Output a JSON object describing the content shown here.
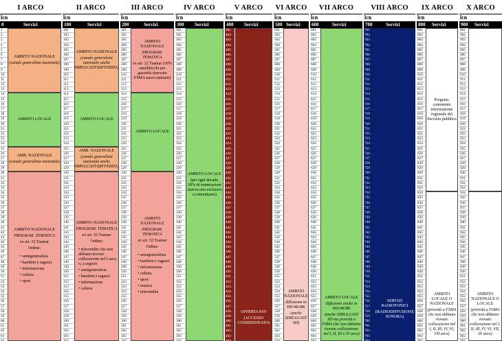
{
  "header": {
    "lcn": "lcn",
    "servizi": "Servizi"
  },
  "arcs": [
    {
      "title": "I ARCO",
      "start": "0"
    },
    {
      "title": "II ARCO",
      "start": "100"
    },
    {
      "title": "III ARCO",
      "start": "200"
    },
    {
      "title": "IV ARCO",
      "start": "300"
    },
    {
      "title": "V ARCO",
      "start": "400"
    },
    {
      "title": "VI ARCO",
      "start": "500"
    },
    {
      "title": "VII ARCO",
      "start": "600"
    },
    {
      "title": "VIII ARCO",
      "start": "700"
    },
    {
      "title": "IX ARCO",
      "start": "800"
    },
    {
      "title": "X ARCO",
      "start": "900"
    }
  ],
  "blocks": {
    "a1_top_1": "AMBITO NAZIONALE",
    "a1_top_2": "(canale generalista nazionale)",
    "a1_mid": "AMBITO LOCALE",
    "a1_20_1": "AMB. NAZIONALE",
    "a1_20_2": "(canale generalista nazionale)",
    "a1_bot_1": "AMBITO NAZIONALE",
    "a1_bot_2": "PROGRAM. TEMATICA",
    "a1_bot_3": "ex art. 32 Tusmar",
    "a1_bot_4": "Ordine:",
    "a1_list": [
      "semigeneralista",
      "bambini e ragazzi",
      "informazione",
      "cultura",
      "sport"
    ],
    "a2_top_1": "AMBITO NAZIONALE",
    "a2_top_2": "(canale generalista nazionale anche SIMULCAST/DIFFERITA)",
    "a2_mid": "AMBITO LOCALE",
    "a2_20_1": "AMB. NAZIONALE",
    "a2_20_2": "(canale generalista nazionale anche SIMULCAST/DIFFERITA)",
    "a2_bot_1": "AMBITO NAZIONALE",
    "a2_bot_2": "PROGRAM. TEMATICA",
    "a2_bot_3": "ex art. 32 Tusmar",
    "a2_bot_4": "Ordine:",
    "a2_list": [
      "televendite che non abbiano trovato collocazione nel I arco, o, a seguire",
      "semigeneralista",
      "bambini e ragazzi",
      "informazione",
      "cultura"
    ],
    "a3_top_1": "AMBITO NAZIONALE",
    "a3_top_2": "PROGRAM. TEMATICA",
    "a3_top_3": "ex art. 32 Tusmar (30% semiblocchi per gazzetta riservato FSMA nuovi entranti)",
    "a3_mid": "AMBITO LOCALE",
    "a3_bot_1": "AMBITO NAZIONALE",
    "a3_bot_2": "PROGRAM. TEMATICA",
    "a3_bot_3": "ex art. 32 Tusmar",
    "a3_bot_4": "Ordine:",
    "a3_list": [
      "semigeneralista",
      "bambini e ragazzi",
      "informazione",
      "cultura",
      "sport",
      "musica",
      "televendite"
    ],
    "a4_1": "AMBITO LOCALE",
    "a4_2": "(per ogni decade, 20% di numerazioni riserva non esclusiva a comunitarie)",
    "a5_1": "OFFERTA PAY",
    "a5_2": "(ACCESSO CONDIZIONATO)",
    "a6_1": "AMBITO NAZIONALE",
    "a6_2": "diffusione in HD/4K/8K",
    "a6_3": "(anche SIMULCAST SD)",
    "a7_1": "AMBITO LOCALE",
    "a7_2": "diffusione anche in HD/4K/8K",
    "a7_3": "(anche SIMULCAST SD ma priorità a FSMA che non abbiano trovato collocazione nel I, II, III e IV arco)",
    "a8_1": "SERVIZI RADIOFONICI",
    "a8_2": "(RADIODIFFUSIONE SONORA)",
    "a9_top": "Program. contenente informazione regionale del Servizio pubblico",
    "a9_bot_1": "AMBITO LOCALE O NAZIONALE",
    "a9_bot_2": "(priorità a FSMA che non abbiano trovato collocazione nel I, II, III, IV, VI, VII arco)",
    "a10_bot_1": "AMBITO NAZIONALE O LOCALE",
    "a10_bot_2": "(priorità a FSMA che non abbiano trovato collocazione nel I, II, III, IV, VI, VII, IX arco)"
  },
  "colors": {
    "orange": "#f4b183",
    "pink": "#f4a39a",
    "green": "#8ed873",
    "lightgreen": "#92d050",
    "darkred": "#8b2318",
    "lightpink": "#f8cbc6",
    "navy": "#0a1f6e",
    "white": "#ffffff"
  }
}
